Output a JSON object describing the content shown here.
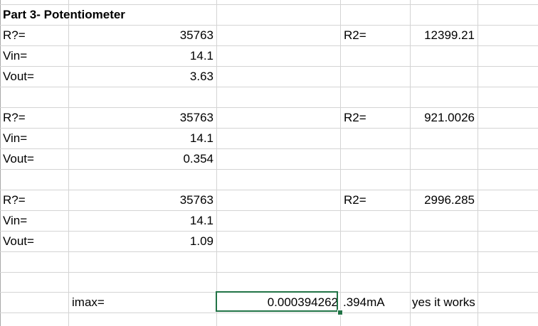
{
  "title": "Part 3- Potentiometer",
  "groups": [
    {
      "r_label": "R?=",
      "r_value": "35763",
      "vin_label": "Vin=",
      "vin_value": "14.1",
      "vout_label": "Vout=",
      "vout_value": "3.63",
      "r2_label": "R2=",
      "r2_value": "12399.21"
    },
    {
      "r_label": "R?=",
      "r_value": "35763",
      "vin_label": "Vin=",
      "vin_value": "14.1",
      "vout_label": "Vout=",
      "vout_value": "0.354",
      "r2_label": "R2=",
      "r2_value": "921.0026"
    },
    {
      "r_label": "R?=",
      "r_value": "35763",
      "vin_label": "Vin=",
      "vin_value": "14.1",
      "vout_label": "Vout=",
      "vout_value": "1.09",
      "r2_label": "R2=",
      "r2_value": "2996.285"
    }
  ],
  "imax": {
    "label": "imax=",
    "value": "0.000394262",
    "ma": ".394mA",
    "note": "yes it works"
  },
  "colors": {
    "gridline": "#d4d4d4",
    "selection": "#217346"
  }
}
